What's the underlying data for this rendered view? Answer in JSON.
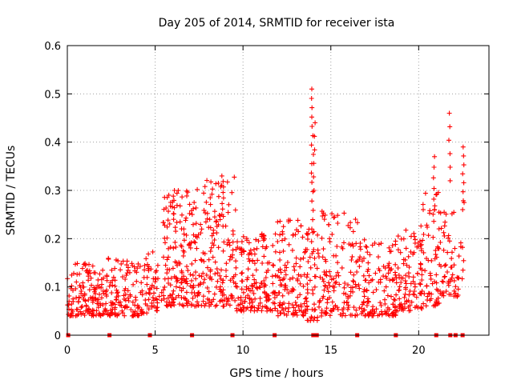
{
  "chart_data": {
    "type": "scatter",
    "title": "Day 205 of 2014, SRMTID for receiver ista",
    "xlabel": "GPS time / hours",
    "ylabel": "SRMTID / TECUs",
    "xlim": [
      0,
      24
    ],
    "ylim": [
      0,
      0.6
    ],
    "xticks": [
      0,
      5,
      10,
      15,
      20
    ],
    "xtick_labels": [
      "0",
      "5",
      "10",
      "15",
      "20"
    ],
    "yticks": [
      0,
      0.1,
      0.2,
      0.3,
      0.4,
      0.5,
      0.6
    ],
    "ytick_labels": [
      "0",
      "0.1",
      "0.2",
      "0.3",
      "0.4",
      "0.5",
      "0.6"
    ],
    "grid": true,
    "marker": "+",
    "series_color": "#ff0000",
    "baseline_markers_x": [
      0.05,
      2.4,
      4.7,
      7.1,
      9.4,
      11.8,
      14.0,
      14.2,
      16.5,
      18.7,
      21.0,
      21.8,
      22.1,
      22.5
    ],
    "clusters": [
      {
        "x": [
          0.0,
          2.3
        ],
        "y": [
          0.04,
          0.15
        ],
        "n": 150
      },
      {
        "x": [
          2.3,
          4.6
        ],
        "y": [
          0.04,
          0.16
        ],
        "n": 130
      },
      {
        "x": [
          4.6,
          5.4
        ],
        "y": [
          0.05,
          0.18
        ],
        "n": 40
      },
      {
        "x": [
          5.4,
          7.3
        ],
        "y": [
          0.06,
          0.3
        ],
        "n": 160
      },
      {
        "x": [
          7.3,
          9.6
        ],
        "y": [
          0.06,
          0.33
        ],
        "n": 170
      },
      {
        "x": [
          9.6,
          11.9
        ],
        "y": [
          0.05,
          0.21
        ],
        "n": 160
      },
      {
        "x": [
          11.9,
          13.6
        ],
        "y": [
          0.04,
          0.24
        ],
        "n": 120
      },
      {
        "x": [
          13.6,
          14.3
        ],
        "y": [
          0.03,
          0.22
        ],
        "n": 50
      },
      {
        "x": [
          14.3,
          16.6
        ],
        "y": [
          0.04,
          0.26
        ],
        "n": 140
      },
      {
        "x": [
          16.6,
          18.8
        ],
        "y": [
          0.04,
          0.2
        ],
        "n": 140
      },
      {
        "x": [
          18.8,
          20.2
        ],
        "y": [
          0.05,
          0.23
        ],
        "n": 100
      },
      {
        "x": [
          20.2,
          21.3
        ],
        "y": [
          0.06,
          0.3
        ],
        "n": 70
      },
      {
        "x": [
          21.3,
          22.6
        ],
        "y": [
          0.08,
          0.28
        ],
        "n": 60
      }
    ],
    "highlights": [
      {
        "x": 13.95,
        "y": [
          0.22,
          0.51
        ],
        "n": 16
      },
      {
        "x": 14.05,
        "y": [
          0.3,
          0.44
        ],
        "n": 6
      },
      {
        "x": 21.75,
        "y": [
          0.32,
          0.46
        ],
        "n": 6
      },
      {
        "x": 22.55,
        "y": [
          0.26,
          0.39
        ],
        "n": 8
      },
      {
        "x": 20.9,
        "y": [
          0.26,
          0.37
        ],
        "n": 6
      },
      {
        "x": 8.85,
        "y": [
          0.25,
          0.33
        ],
        "n": 8
      },
      {
        "x": 6.05,
        "y": [
          0.24,
          0.3
        ],
        "n": 6
      }
    ]
  }
}
